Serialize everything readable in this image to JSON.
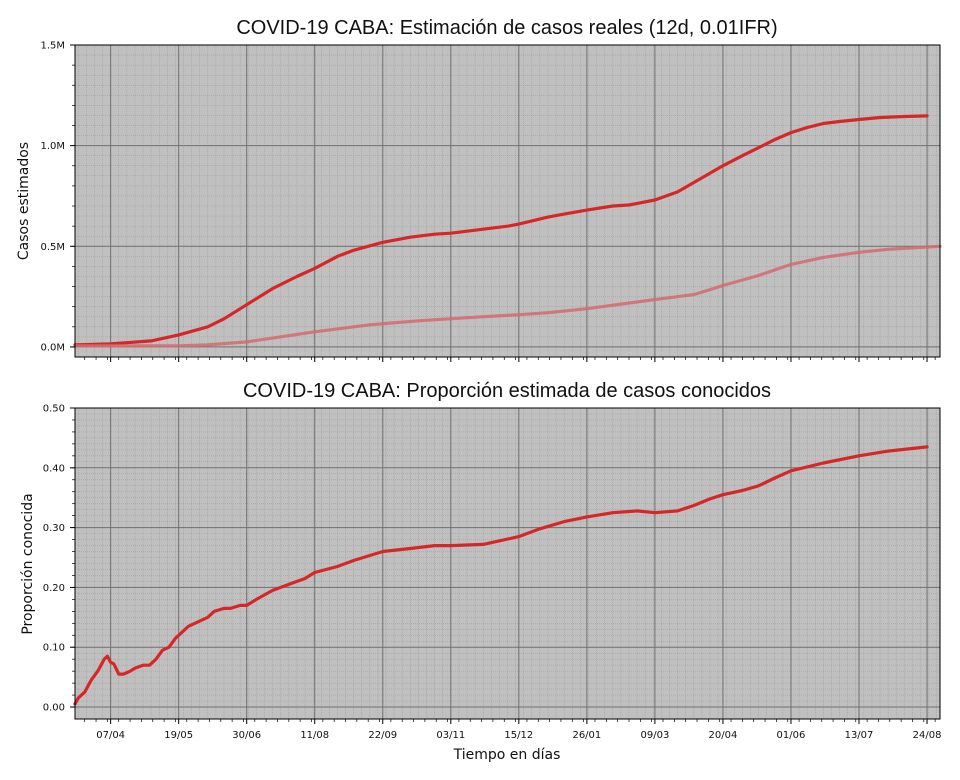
{
  "chart_data": [
    {
      "type": "line",
      "title": "COVID-19 CABA: Estimación de casos reales (12d, 0.01IFR)",
      "ylabel": "Casos estimados",
      "xlabel": "",
      "ylim": [
        -0.05,
        1.5
      ],
      "ytick_values": [
        0.0,
        0.5,
        1.0,
        1.5
      ],
      "ytick_labels": [
        "0.0M",
        "0.5M",
        "1.0M",
        "1.5M"
      ],
      "x_tick_days": [
        30,
        72,
        114,
        156,
        198,
        240,
        282,
        324,
        366,
        408,
        450,
        492,
        534
      ],
      "xlim_days": [
        8,
        542
      ],
      "grid": true,
      "series": [
        {
          "color": "#d62728",
          "opacity": 1.0,
          "x_days": [
            8,
            30,
            55,
            72,
            90,
            100,
            114,
            130,
            145,
            156,
            170,
            180,
            198,
            215,
            230,
            240,
            250,
            260,
            275,
            282,
            300,
            310,
            324,
            340,
            350,
            366,
            380,
            395,
            408,
            420,
            430,
            440,
            450,
            460,
            470,
            480,
            492,
            505,
            520,
            534
          ],
          "values": [
            0.01,
            0.015,
            0.03,
            0.06,
            0.1,
            0.14,
            0.21,
            0.29,
            0.35,
            0.39,
            0.45,
            0.48,
            0.52,
            0.545,
            0.56,
            0.565,
            0.575,
            0.585,
            0.6,
            0.61,
            0.645,
            0.66,
            0.68,
            0.7,
            0.705,
            0.73,
            0.77,
            0.84,
            0.9,
            0.95,
            0.99,
            1.03,
            1.065,
            1.09,
            1.11,
            1.12,
            1.13,
            1.14,
            1.145,
            1.148
          ]
        },
        {
          "color": "#d46a6e",
          "opacity": 0.85,
          "x_days": [
            8,
            72,
            90,
            114,
            156,
            190,
            220,
            250,
            282,
            300,
            324,
            366,
            390,
            400,
            408,
            430,
            450,
            470,
            492,
            510,
            542
          ],
          "values": [
            0.005,
            0.005,
            0.01,
            0.025,
            0.075,
            0.11,
            0.13,
            0.145,
            0.16,
            0.17,
            0.19,
            0.235,
            0.26,
            0.285,
            0.305,
            0.355,
            0.41,
            0.445,
            0.47,
            0.485,
            0.5
          ]
        }
      ]
    },
    {
      "type": "line",
      "title": "COVID-19 CABA: Proporción estimada de casos conocidos",
      "ylabel": "Proporción conocida",
      "xlabel": "Tiempo en días",
      "ylim": [
        -0.02,
        0.5
      ],
      "ytick_values": [
        0.0,
        0.1,
        0.2,
        0.3,
        0.4,
        0.5
      ],
      "ytick_labels": [
        "0.00",
        "0.10",
        "0.20",
        "0.30",
        "0.40",
        "0.50"
      ],
      "x_tick_labels": [
        "07/04",
        "19/05",
        "30/06",
        "11/08",
        "22/09",
        "03/11",
        "15/12",
        "26/01",
        "09/03",
        "20/04",
        "01/06",
        "13/07",
        "24/08"
      ],
      "x_tick_days": [
        30,
        72,
        114,
        156,
        198,
        240,
        282,
        324,
        366,
        408,
        450,
        492,
        534
      ],
      "xlim_days": [
        8,
        542
      ],
      "grid": true,
      "series": [
        {
          "color": "#d62728",
          "opacity": 1.0,
          "x_days": [
            8,
            10,
            14,
            18,
            22,
            26,
            28,
            30,
            32,
            35,
            38,
            42,
            45,
            50,
            54,
            58,
            62,
            66,
            70,
            72,
            78,
            82,
            90,
            94,
            100,
            104,
            110,
            114,
            120,
            130,
            140,
            150,
            156,
            170,
            180,
            198,
            215,
            230,
            240,
            260,
            282,
            295,
            310,
            324,
            340,
            355,
            366,
            380,
            390,
            400,
            408,
            420,
            430,
            440,
            450,
            470,
            492,
            510,
            534
          ],
          "values": [
            0.005,
            0.015,
            0.025,
            0.045,
            0.06,
            0.08,
            0.085,
            0.075,
            0.072,
            0.055,
            0.055,
            0.06,
            0.065,
            0.07,
            0.07,
            0.08,
            0.095,
            0.1,
            0.115,
            0.12,
            0.135,
            0.14,
            0.15,
            0.16,
            0.165,
            0.165,
            0.17,
            0.17,
            0.18,
            0.195,
            0.205,
            0.215,
            0.225,
            0.235,
            0.245,
            0.26,
            0.265,
            0.27,
            0.27,
            0.272,
            0.285,
            0.298,
            0.31,
            0.318,
            0.325,
            0.328,
            0.325,
            0.328,
            0.337,
            0.348,
            0.355,
            0.362,
            0.37,
            0.383,
            0.395,
            0.408,
            0.42,
            0.428,
            0.435
          ]
        }
      ]
    }
  ]
}
